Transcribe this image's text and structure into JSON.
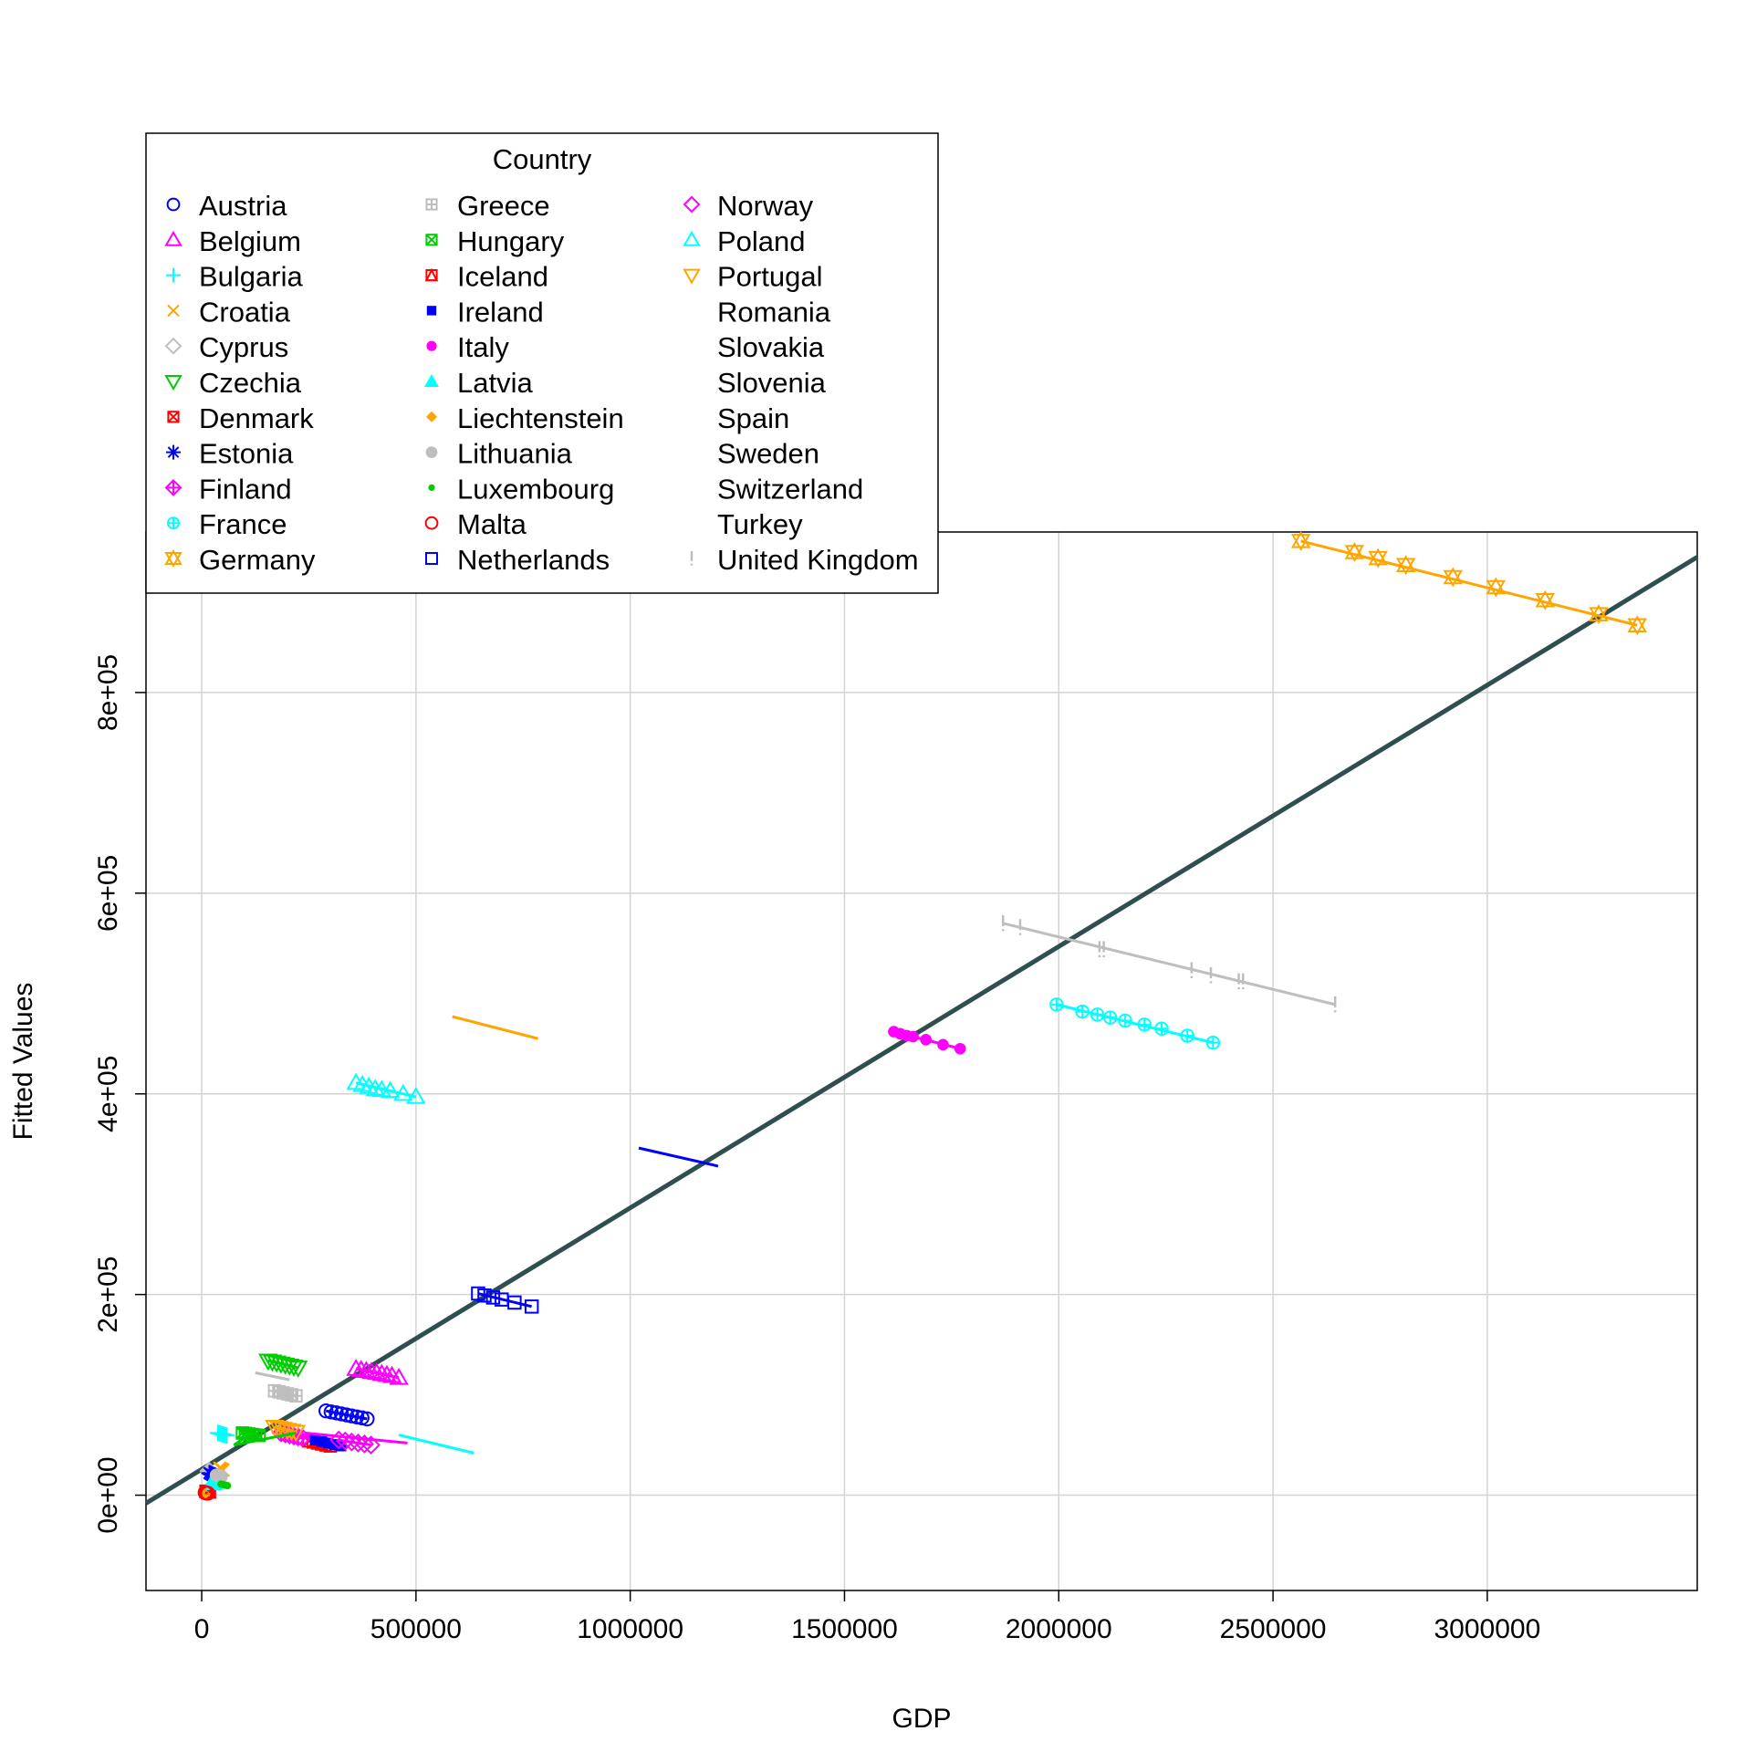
{
  "chart_data": {
    "type": "scatter",
    "xlabel": "GDP",
    "ylabel": "Fitted Values",
    "xlim": [
      -130000,
      3490000
    ],
    "ylim": [
      -95000,
      960000
    ],
    "x_ticks": [
      0,
      500000,
      1000000,
      1500000,
      2000000,
      2500000,
      3000000
    ],
    "x_tick_labels": [
      "0",
      "500000",
      "1000000",
      "1500000",
      "2000000",
      "2500000",
      "3000000"
    ],
    "y_ticks": [
      0,
      200000,
      400000,
      600000,
      800000
    ],
    "y_tick_labels": [
      "0e+00",
      "2e+05",
      "4e+05",
      "6e+05",
      "8e+05"
    ],
    "grid": true,
    "overall_fit": {
      "x": [
        -130000,
        3490000
      ],
      "y": [
        -8000,
        935000
      ],
      "color": "#2F4F4F"
    },
    "legend": {
      "title": "Country",
      "placement": "top-left",
      "columns": 3
    },
    "series": [
      {
        "name": "Austria",
        "color": "#0000FF",
        "marker": "circle",
        "x": [
          290000,
          302000,
          314000,
          326000,
          338000,
          350000,
          362000,
          374000,
          386000
        ],
        "y": [
          84000,
          83000,
          82000,
          81000,
          80000,
          79000,
          78000,
          77000,
          76000
        ]
      },
      {
        "name": "Belgium",
        "color": "#FF00FF",
        "marker": "triangle",
        "x": [
          360000,
          372000,
          384000,
          396000,
          408000,
          420000,
          432000,
          444000,
          460000
        ],
        "y": [
          126000,
          125000,
          124000,
          123000,
          122000,
          121000,
          120000,
          119000,
          117000
        ]
      },
      {
        "name": "Bulgaria",
        "color": "#00FFFF",
        "marker": "plus",
        "x": [
          38000,
          42000,
          46000,
          50000,
          54000,
          58000
        ],
        "y": [
          62000,
          61500,
          61000,
          60500,
          60000,
          59500
        ]
      },
      {
        "name": "Croatia",
        "color": "#FFA500",
        "marker": "x",
        "x": [
          42000,
          44000,
          46000,
          48000,
          50000
        ],
        "y": [
          27000,
          26500,
          26000,
          25500,
          25000
        ]
      },
      {
        "name": "Cyprus",
        "color": "#BEBEBE",
        "marker": "diamond",
        "x": [
          17000,
          18000,
          19000,
          20000,
          21000,
          22000
        ],
        "y": [
          24000,
          23500,
          23000,
          22500,
          22000,
          21500
        ]
      },
      {
        "name": "Czechia",
        "color": "#00CD00",
        "marker": "triangle-down",
        "x": [
          155000,
          165000,
          175000,
          185000,
          195000,
          205000,
          215000,
          225000
        ],
        "y": [
          134000,
          133000,
          132000,
          131000,
          130000,
          129000,
          128000,
          127000
        ]
      },
      {
        "name": "Denmark",
        "color": "#FF0000",
        "marker": "square-x",
        "x": [
          250000,
          260000,
          270000,
          280000,
          290000,
          300000
        ],
        "y": [
          54000,
          53000,
          52000,
          51000,
          50000,
          49000
        ]
      },
      {
        "name": "Estonia",
        "color": "#0000FF",
        "marker": "asterisk",
        "x": [
          18000,
          20000,
          22000,
          24000,
          26000
        ],
        "y": [
          22000,
          21500,
          21000,
          20500,
          20000
        ]
      },
      {
        "name": "Finland",
        "color": "#FF00FF",
        "marker": "diamond-plus",
        "x": [
          185000,
          195000,
          205000,
          215000,
          225000,
          235000
        ],
        "y": [
          62000,
          61000,
          60000,
          59000,
          58000,
          57000
        ]
      },
      {
        "name": "France",
        "color": "#00FFFF",
        "marker": "circle-plus",
        "x": [
          1995000,
          2055000,
          2090000,
          2120000,
          2155000,
          2200000,
          2240000,
          2300000,
          2360000
        ],
        "y": [
          489000,
          482000,
          479000,
          476000,
          473000,
          469000,
          465000,
          458000,
          451000
        ]
      },
      {
        "name": "Germany",
        "color": "#FFA500",
        "marker": "star-of-david",
        "x": [
          2565000,
          2690000,
          2745000,
          2810000,
          2920000,
          3020000,
          3135000,
          3260000,
          3350000
        ],
        "y": [
          951000,
          940000,
          934000,
          927000,
          915000,
          905000,
          892000,
          878000,
          867000
        ]
      },
      {
        "name": "Greece",
        "color": "#BEBEBE",
        "marker": "square-plus",
        "x": [
          170000,
          180000,
          190000,
          200000,
          210000,
          220000
        ],
        "y": [
          104000,
          103000,
          102000,
          101000,
          100000,
          99000
        ]
      },
      {
        "name": "Hungary",
        "color": "#00CD00",
        "marker": "square-x",
        "x": [
          95000,
          102000,
          110000,
          118000,
          126000,
          134000
        ],
        "y": [
          62000,
          61500,
          61000,
          60500,
          60000,
          59500
        ]
      },
      {
        "name": "Iceland",
        "color": "#FF0000",
        "marker": "square-triangle",
        "x": [
          10000,
          12000,
          14000,
          16000,
          18000
        ],
        "y": [
          4000,
          3800,
          3600,
          3400,
          3200
        ]
      },
      {
        "name": "Ireland",
        "color": "#0000FF",
        "marker": "filled-square",
        "x": [
          265000,
          280000,
          295000,
          310000,
          325000
        ],
        "y": [
          55000,
          53500,
          52000,
          50500,
          49000
        ]
      },
      {
        "name": "Italy",
        "color": "#FF00FF",
        "marker": "filled-circle",
        "x": [
          1615000,
          1630000,
          1645000,
          1660000,
          1690000,
          1730000,
          1770000
        ],
        "y": [
          462000,
          460000,
          458000,
          457000,
          454000,
          449000,
          445000
        ]
      },
      {
        "name": "Latvia",
        "color": "#00FFFF",
        "marker": "filled-triangle",
        "x": [
          22000,
          24000,
          26000,
          28000,
          30000
        ],
        "y": [
          12000,
          11800,
          11600,
          11400,
          11200
        ]
      },
      {
        "name": "Liechtenstein",
        "color": "#FFA500",
        "marker": "filled-diamond",
        "x": [
          5000,
          5500,
          6000,
          6500
        ],
        "y": [
          1200,
          1150,
          1100,
          1050
        ]
      },
      {
        "name": "Lithuania",
        "color": "#BEBEBE",
        "marker": "filled-circle-large",
        "x": [
          34000,
          37000,
          40000,
          43000,
          46000
        ],
        "y": [
          20000,
          19700,
          19400,
          19100,
          18800
        ]
      },
      {
        "name": "Luxembourg",
        "color": "#00CD00",
        "marker": "filled-circle-small",
        "x": [
          45000,
          50000,
          55000,
          60000
        ],
        "y": [
          11000,
          10500,
          10000,
          9500
        ]
      },
      {
        "name": "Malta",
        "color": "#FF0000",
        "marker": "circle",
        "x": [
          8000,
          10000,
          12000,
          14000
        ],
        "y": [
          2500,
          2300,
          2100,
          1900
        ]
      },
      {
        "name": "Netherlands",
        "color": "#0000FF",
        "marker": "square",
        "x": [
          645000,
          660000,
          680000,
          700000,
          730000,
          770000
        ],
        "y": [
          201000,
          199000,
          197000,
          195000,
          192000,
          188000
        ]
      },
      {
        "name": "Norway",
        "color": "#FF00FF",
        "marker": "diamond",
        "x": [
          320000,
          335000,
          350000,
          365000,
          380000,
          395000
        ],
        "y": [
          55000,
          54000,
          53000,
          52000,
          51000,
          50000
        ]
      },
      {
        "name": "Poland",
        "color": "#00FFFF",
        "marker": "triangle",
        "x": [
          360000,
          375000,
          390000,
          405000,
          420000,
          440000,
          470000,
          500000
        ],
        "y": [
          411000,
          409000,
          407000,
          405000,
          404000,
          403000,
          400000,
          397000
        ]
      },
      {
        "name": "Portugal",
        "color": "#FFA500",
        "marker": "triangle-down",
        "x": [
          170000,
          180000,
          190000,
          200000,
          210000,
          220000
        ],
        "y": [
          68000,
          67000,
          66000,
          65000,
          64000,
          63000
        ]
      },
      {
        "name": "Romania",
        "color": "#00CD00",
        "marker": "none",
        "line": {
          "x": [
            75000,
            220000
          ],
          "y": [
            50000,
            62000
          ]
        },
        "x": [],
        "y": []
      },
      {
        "name": "Slovakia",
        "color": "#FF00FF",
        "marker": "none",
        "line": {
          "x": [
            240000,
            480000
          ],
          "y": [
            62000,
            52000
          ]
        },
        "x": [],
        "y": []
      },
      {
        "name": "Slovenia",
        "color": "#00FFFF",
        "marker": "none",
        "line": {
          "x": [
            460000,
            635000
          ],
          "y": [
            60000,
            42000
          ]
        },
        "x": [],
        "y": []
      },
      {
        "name": "Spain",
        "color": "#FFA500",
        "marker": "none",
        "line": {
          "x": [
            585000,
            785000
          ],
          "y": [
            477000,
            455000
          ]
        },
        "x": [],
        "y": []
      },
      {
        "name": "Sweden",
        "color": "#0000FF",
        "marker": "none",
        "line": {
          "x": [
            1020000,
            1205000
          ],
          "y": [
            346000,
            328000
          ]
        },
        "x": [],
        "y": []
      },
      {
        "name": "Switzerland",
        "color": "#BEBEBE",
        "marker": "none",
        "line": {
          "x": [
            125000,
            205000
          ],
          "y": [
            122000,
            115000
          ]
        },
        "x": [],
        "y": []
      },
      {
        "name": "Turkey",
        "color": "#00CD00",
        "marker": "none",
        "line": {
          "x": [
            75000,
            110000
          ],
          "y": [
            50000,
            60000
          ]
        },
        "x": [],
        "y": []
      },
      {
        "name": "United Kingdom",
        "color": "#BEBEBE",
        "marker": "exclaim",
        "x": [
          1870000,
          1910000,
          2095000,
          2105000,
          2310000,
          2355000,
          2420000,
          2430000,
          2645000
        ],
        "y": [
          570000,
          566000,
          544000,
          544000,
          523000,
          518000,
          512000,
          512000,
          489000
        ]
      }
    ]
  }
}
